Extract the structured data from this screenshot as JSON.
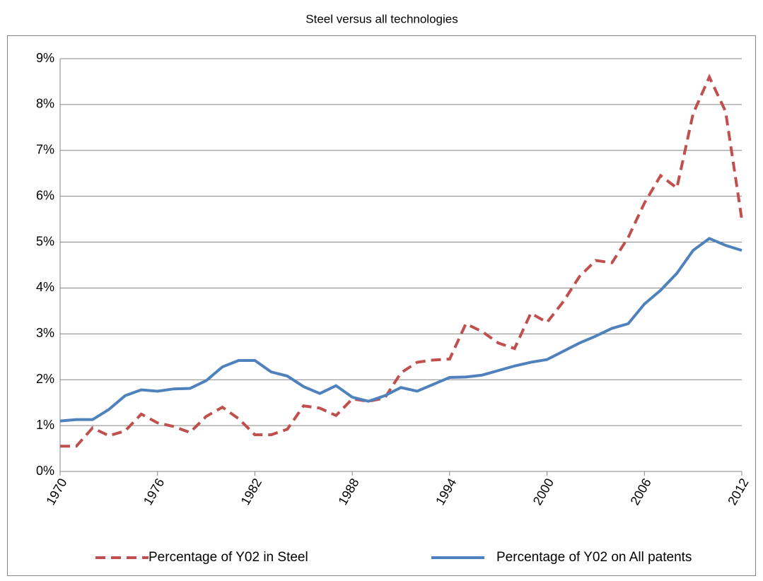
{
  "chart_data": {
    "type": "line",
    "title": "Steel versus all technologies",
    "x": [
      1970,
      1971,
      1972,
      1973,
      1974,
      1975,
      1976,
      1977,
      1978,
      1979,
      1980,
      1981,
      1982,
      1983,
      1984,
      1985,
      1986,
      1987,
      1988,
      1989,
      1990,
      1991,
      1992,
      1993,
      1994,
      1995,
      1996,
      1997,
      1998,
      1999,
      2000,
      2001,
      2002,
      2003,
      2004,
      2005,
      2006,
      2007,
      2008,
      2009,
      2010,
      2011,
      2012
    ],
    "series": [
      {
        "name": "Percentage of Y02 in Steel",
        "color": "#c0504d",
        "line_style": "dashed",
        "values": [
          0.55,
          0.55,
          0.95,
          0.78,
          0.88,
          1.25,
          1.06,
          0.98,
          0.85,
          1.2,
          1.4,
          1.15,
          0.8,
          0.8,
          0.92,
          1.43,
          1.38,
          1.22,
          1.58,
          1.53,
          1.6,
          2.15,
          2.38,
          2.43,
          2.45,
          3.22,
          3.05,
          2.8,
          2.68,
          3.45,
          3.25,
          3.7,
          4.25,
          4.6,
          4.55,
          5.1,
          5.85,
          6.45,
          6.18,
          7.8,
          8.6,
          7.85,
          5.5
        ]
      },
      {
        "name": "Percentage of Y02 on All patents",
        "color": "#4f81bd",
        "line_style": "solid",
        "values": [
          1.1,
          1.13,
          1.13,
          1.35,
          1.65,
          1.78,
          1.75,
          1.8,
          1.81,
          1.98,
          2.28,
          2.42,
          2.42,
          2.17,
          2.08,
          1.85,
          1.7,
          1.87,
          1.62,
          1.53,
          1.65,
          1.83,
          1.75,
          1.9,
          2.05,
          2.06,
          2.1,
          2.2,
          2.3,
          2.38,
          2.44,
          2.62,
          2.8,
          2.95,
          3.12,
          3.22,
          3.65,
          3.95,
          4.32,
          4.82,
          5.08,
          4.93,
          4.82
        ]
      }
    ],
    "xlim": [
      1970,
      2012
    ],
    "xticks": [
      1970,
      1976,
      1982,
      1988,
      1994,
      2000,
      2006,
      2012
    ],
    "ylim": [
      0,
      9
    ],
    "yticks": [
      {
        "value": 0,
        "label": "0%"
      },
      {
        "value": 1,
        "label": "1%"
      },
      {
        "value": 2,
        "label": "2%"
      },
      {
        "value": 3,
        "label": "3%"
      },
      {
        "value": 4,
        "label": "4%"
      },
      {
        "value": 5,
        "label": "5%"
      },
      {
        "value": 6,
        "label": "6%"
      },
      {
        "value": 7,
        "label": "7%"
      },
      {
        "value": 8,
        "label": "8%"
      },
      {
        "value": 9,
        "label": "9%"
      }
    ],
    "grid": true,
    "legend": "bottom"
  }
}
